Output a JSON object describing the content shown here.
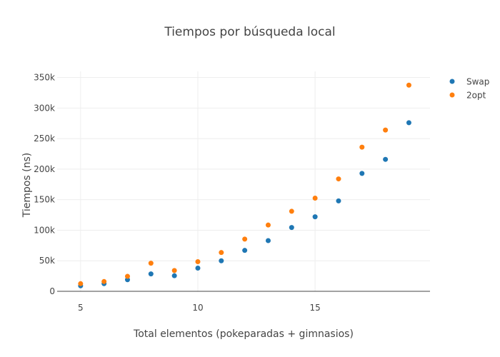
{
  "chart_data": {
    "type": "scatter",
    "title": "Tiempos por búsqueda local",
    "xlabel": "Total elementos (pokeparadas + gimnasios)",
    "ylabel": "Tiempos (ns)",
    "xlim": [
      4,
      19.9
    ],
    "ylim": [
      0,
      360000
    ],
    "x_ticks": [
      5,
      10,
      15
    ],
    "x_tick_labels": [
      "5",
      "10",
      "15"
    ],
    "y_ticks": [
      0,
      50000,
      100000,
      150000,
      200000,
      250000,
      300000,
      350000
    ],
    "y_tick_labels": [
      "0",
      "50k",
      "100k",
      "150k",
      "200k",
      "250k",
      "300k",
      "350k"
    ],
    "grid": true,
    "legend_position": "top-right",
    "series": [
      {
        "name": "Swap",
        "color": "#1f77b4",
        "x": [
          5,
          6,
          7,
          8,
          9,
          10,
          11,
          12,
          13,
          14,
          15,
          16,
          17,
          18,
          19
        ],
        "y": [
          9000,
          12500,
          19000,
          28500,
          25500,
          38000,
          50000,
          67000,
          83000,
          104500,
          122000,
          148000,
          193000,
          216000,
          276000
        ]
      },
      {
        "name": "2opt",
        "color": "#ff7f0e",
        "x": [
          5,
          6,
          7,
          8,
          9,
          10,
          11,
          12,
          13,
          14,
          15,
          16,
          17,
          18,
          19
        ],
        "y": [
          12500,
          16000,
          24500,
          46000,
          34000,
          48500,
          63500,
          85500,
          108500,
          131000,
          152500,
          184000,
          236000,
          264000,
          337500
        ]
      }
    ]
  }
}
